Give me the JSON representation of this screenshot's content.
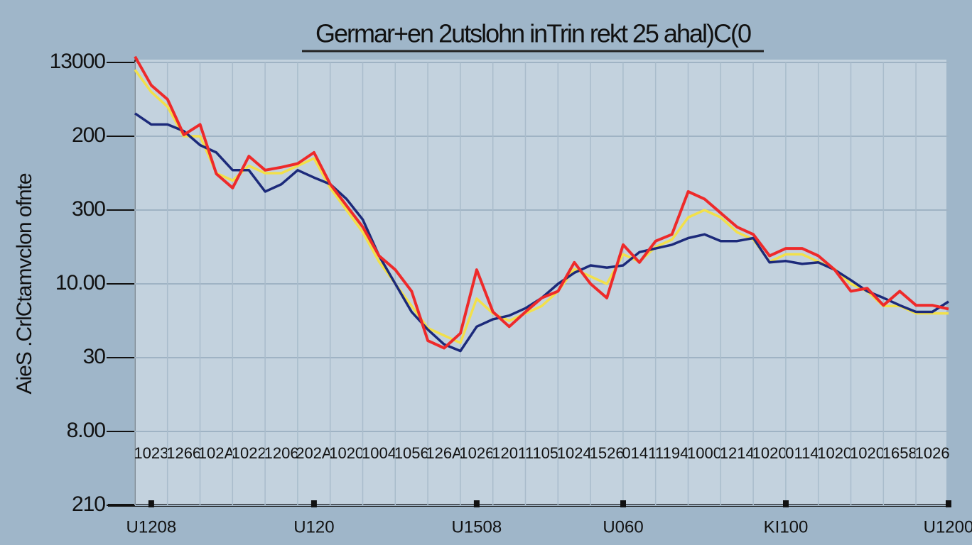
{
  "chart_data": {
    "type": "line",
    "title": "Germar+en 2utslohn inTrin rekt 25 ahal)C(0",
    "y_label": "AieS .CrlCtamvclon ofnte",
    "x": [
      0,
      1,
      2,
      3,
      4,
      5,
      6,
      7,
      8,
      9,
      10,
      11,
      12,
      13,
      14,
      15,
      16,
      17,
      18,
      19,
      20,
      21,
      22,
      23,
      24,
      25,
      26,
      27,
      28,
      29,
      30,
      31,
      32,
      33,
      34,
      35,
      36,
      37,
      38,
      39,
      40,
      41,
      42,
      43,
      44,
      45,
      46,
      47,
      48,
      49,
      50
    ],
    "xlim": [
      0,
      50
    ],
    "ylim": [
      0,
      6
    ],
    "yticks": [
      {
        "value": 6,
        "label": "13000"
      },
      {
        "value": 5,
        "label": "200"
      },
      {
        "value": 4,
        "label": "300"
      },
      {
        "value": 3,
        "label": "10.00"
      },
      {
        "value": 2,
        "label": "30"
      },
      {
        "value": 1,
        "label": "8.00"
      },
      {
        "value": 0,
        "label": "210"
      }
    ],
    "xticks": [
      {
        "value": 1,
        "label": "1023"
      },
      {
        "value": 3,
        "label": "1266"
      },
      {
        "value": 5,
        "label": "102A"
      },
      {
        "value": 7,
        "label": "1022"
      },
      {
        "value": 9,
        "label": "1206"
      },
      {
        "value": 11,
        "label": "202A"
      },
      {
        "value": 13,
        "label": "1020"
      },
      {
        "value": 15,
        "label": "1004"
      },
      {
        "value": 17,
        "label": "1056"
      },
      {
        "value": 19,
        "label": "126A"
      },
      {
        "value": 21,
        "label": "1026"
      },
      {
        "value": 23,
        "label": "1201"
      },
      {
        "value": 25,
        "label": "1105"
      },
      {
        "value": 27,
        "label": "1024"
      },
      {
        "value": 29,
        "label": "1526"
      },
      {
        "value": 31,
        "label": "0141"
      },
      {
        "value": 33,
        "label": "1194"
      },
      {
        "value": 35,
        "label": "1000"
      },
      {
        "value": 37,
        "label": "1214"
      },
      {
        "value": 39,
        "label": "1020"
      },
      {
        "value": 41,
        "label": "0114"
      },
      {
        "value": 43,
        "label": "1020"
      },
      {
        "value": 45,
        "label": "1020"
      },
      {
        "value": 47,
        "label": "1658"
      },
      {
        "value": 49,
        "label": "1026"
      }
    ],
    "xticks_bottom": [
      {
        "value": 1,
        "label": "U1208"
      },
      {
        "value": 11,
        "label": "U120"
      },
      {
        "value": 21,
        "label": "U1508"
      },
      {
        "value": 30,
        "label": "U060"
      },
      {
        "value": 40,
        "label": "KI100"
      },
      {
        "value": 50,
        "label": "U1200"
      }
    ],
    "grid": true,
    "series": [
      {
        "color": "#f2e04a",
        "values": [
          5.9,
          5.6,
          5.4,
          5.0,
          5.0,
          4.5,
          4.4,
          4.6,
          4.5,
          4.5,
          4.6,
          4.7,
          4.3,
          4.0,
          3.7,
          3.3,
          3.0,
          2.7,
          2.4,
          2.3,
          2.2,
          2.8,
          2.6,
          2.5,
          2.6,
          2.7,
          2.9,
          3.2,
          3.1,
          3.0,
          3.4,
          3.3,
          3.5,
          3.6,
          3.9,
          4.0,
          3.9,
          3.7,
          3.6,
          3.3,
          3.4,
          3.4,
          3.3,
          3.2,
          3.0,
          2.9,
          2.7,
          2.7,
          2.6,
          2.6,
          2.6
        ]
      },
      {
        "color": "#1c2a7a",
        "values": [
          5.31,
          5.16,
          5.16,
          5.07,
          4.88,
          4.78,
          4.54,
          4.54,
          4.25,
          4.35,
          4.54,
          4.44,
          4.35,
          4.15,
          3.87,
          3.38,
          3.0,
          2.62,
          2.38,
          2.18,
          2.09,
          2.42,
          2.52,
          2.57,
          2.67,
          2.81,
          3.0,
          3.15,
          3.25,
          3.22,
          3.25,
          3.43,
          3.48,
          3.53,
          3.62,
          3.67,
          3.58,
          3.58,
          3.62,
          3.29,
          3.31,
          3.27,
          3.29,
          3.19,
          3.05,
          2.9,
          2.81,
          2.71,
          2.62,
          2.62,
          2.76
        ]
      },
      {
        "color": "#ee2a2a",
        "values": [
          6.08,
          5.69,
          5.5,
          5.02,
          5.16,
          4.49,
          4.3,
          4.73,
          4.54,
          4.58,
          4.63,
          4.78,
          4.35,
          4.06,
          3.77,
          3.38,
          3.19,
          2.9,
          2.23,
          2.13,
          2.33,
          3.19,
          2.62,
          2.42,
          2.62,
          2.81,
          2.9,
          3.29,
          3.0,
          2.81,
          3.53,
          3.29,
          3.58,
          3.67,
          4.25,
          4.15,
          3.96,
          3.77,
          3.67,
          3.38,
          3.48,
          3.48,
          3.38,
          3.19,
          2.9,
          2.94,
          2.71,
          2.9,
          2.71,
          2.71,
          2.66
        ]
      }
    ]
  }
}
